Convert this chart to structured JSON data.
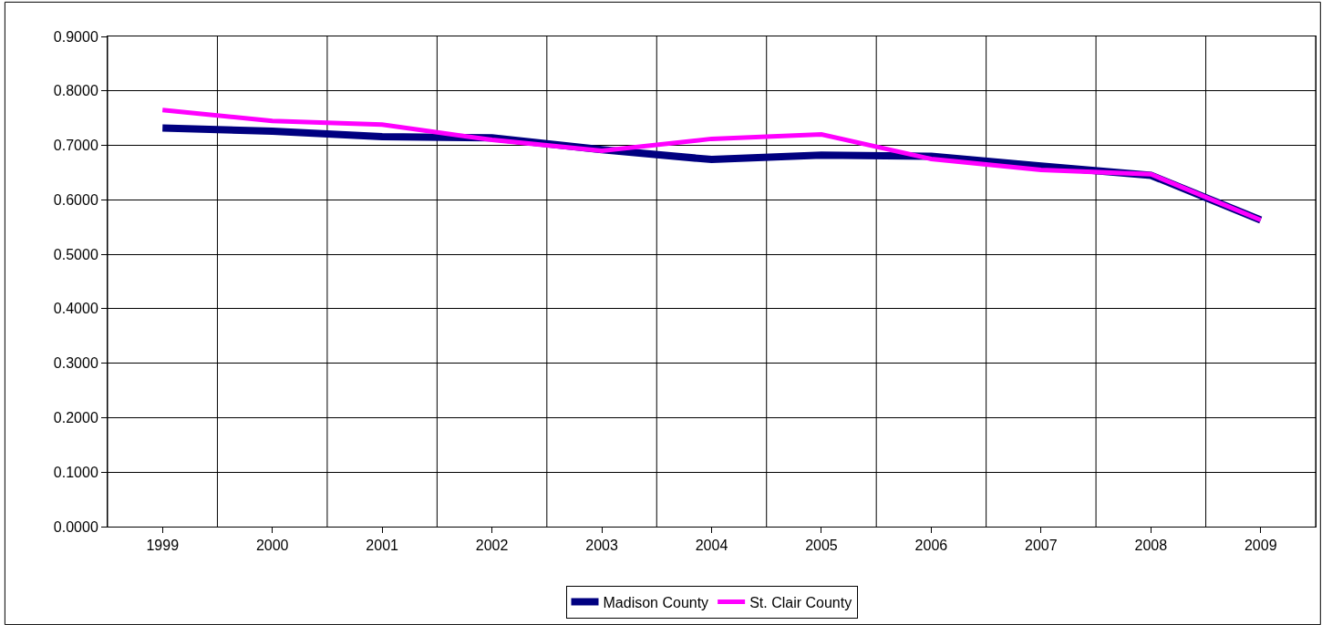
{
  "chart_data": {
    "type": "line",
    "categories": [
      "1999",
      "2000",
      "2001",
      "2002",
      "2003",
      "2004",
      "2005",
      "2006",
      "2007",
      "2008",
      "2009"
    ],
    "series": [
      {
        "name": "Madison County",
        "color": "#000080",
        "values": [
          0.732,
          0.726,
          0.716,
          0.714,
          0.692,
          0.674,
          0.682,
          0.68,
          0.662,
          0.645,
          0.563
        ]
      },
      {
        "name": "St. Clair County",
        "color": "#ff00ff",
        "values": [
          0.765,
          0.745,
          0.738,
          0.71,
          0.69,
          0.712,
          0.72,
          0.675,
          0.655,
          0.647,
          0.563
        ]
      }
    ],
    "ylim": [
      0,
      0.9
    ],
    "yticks": [
      {
        "value": 0,
        "label": "0.0000"
      },
      {
        "value": 0.1,
        "label": "0.1000"
      },
      {
        "value": 0.2,
        "label": "0.2000"
      },
      {
        "value": 0.3,
        "label": "0.3000"
      },
      {
        "value": 0.4,
        "label": "0.4000"
      },
      {
        "value": 0.5,
        "label": "0.5000"
      },
      {
        "value": 0.6,
        "label": "0.6000"
      },
      {
        "value": 0.7,
        "label": "0.7000"
      },
      {
        "value": 0.8,
        "label": "0.8000"
      },
      {
        "value": 0.9,
        "label": "0.9000"
      }
    ],
    "grid": true,
    "legend": "bottom",
    "marker": "none",
    "line_style": "solid"
  }
}
